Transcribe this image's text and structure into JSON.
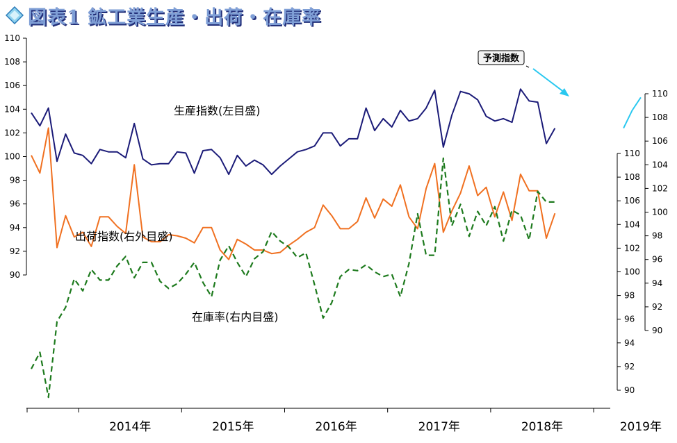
{
  "title": "図表1 鉱工業生産・出荷・在庫率",
  "colors": {
    "production": "#1b1b78",
    "shipments": "#f07020",
    "inventory": "#1d7a1d",
    "forecast": "#29c8f0"
  },
  "chart_data": {
    "type": "line",
    "x_labels": [
      "2014年",
      "2015年",
      "2016年",
      "2017年",
      "2018年",
      "2019年"
    ],
    "x_range": [
      "2013-07",
      "2019-05"
    ],
    "axes": {
      "left": {
        "ylim": [
          90,
          110
        ],
        "ticks": [
          "110",
          "108",
          "106",
          "104",
          "102",
          "100",
          "98",
          "96",
          "94",
          "92",
          "90"
        ]
      },
      "right_outer": {
        "ylim": [
          90,
          110
        ],
        "ticks": [
          "110",
          "108",
          "106",
          "104",
          "102",
          "100",
          "98",
          "96",
          "94",
          "92",
          "90"
        ]
      },
      "right_inner": {
        "ylim": [
          90,
          110
        ],
        "ticks": [
          "110",
          "108",
          "106",
          "104",
          "102",
          "100",
          "98",
          "96",
          "94",
          "92",
          "90"
        ]
      }
    },
    "series": [
      {
        "name": "生産指数(左目盛)",
        "key": "production",
        "axis": "left",
        "start": "2013-07",
        "values": [
          103.7,
          102.6,
          104.1,
          99.6,
          101.9,
          100.3,
          100.1,
          99.4,
          100.6,
          100.4,
          100.4,
          99.9,
          102.8,
          99.8,
          99.3,
          99.4,
          99.4,
          100.4,
          100.3,
          98.6,
          100.5,
          100.6,
          99.9,
          98.5,
          100.1,
          99.2,
          99.7,
          99.3,
          98.5,
          99.2,
          99.8,
          100.4,
          100.6,
          100.9,
          102.0,
          102.0,
          100.9,
          101.5,
          101.5,
          104.1,
          102.2,
          103.2,
          102.5,
          103.9,
          103.0,
          103.2,
          104.1,
          105.6,
          100.8,
          103.5,
          105.5,
          105.3,
          104.8,
          103.4,
          103.0,
          103.2,
          102.9,
          105.7,
          104.7,
          104.6,
          101.1,
          102.4
        ]
      },
      {
        "name": "予測指数",
        "key": "forecast",
        "axis": "left",
        "start": "2019-04",
        "values": [
          102.4,
          103.9,
          105.0
        ]
      },
      {
        "name": "出荷指数(右外目盛)",
        "key": "shipments",
        "axis": "right_outer",
        "start": "2013-07",
        "values": [
          104.8,
          103.3,
          107.1,
          97.0,
          99.7,
          97.9,
          98.3,
          97.1,
          99.6,
          99.6,
          98.8,
          98.2,
          104.0,
          97.9,
          97.5,
          97.5,
          98.1,
          98.0,
          97.8,
          97.4,
          98.7,
          98.7,
          96.8,
          96.0,
          97.7,
          97.3,
          96.8,
          96.8,
          96.5,
          96.6,
          97.2,
          97.7,
          98.3,
          98.7,
          100.6,
          99.7,
          98.6,
          98.6,
          99.2,
          101.2,
          99.5,
          101.1,
          100.5,
          102.3,
          99.6,
          98.6,
          102.0,
          104.1,
          98.3,
          100.1,
          101.6,
          103.9,
          101.4,
          102.1,
          99.6,
          101.7,
          99.3,
          103.2,
          101.8,
          101.8,
          97.8,
          99.9
        ]
      },
      {
        "name": "在庫率(右内目盛)",
        "key": "inventory",
        "axis": "right_inner",
        "start": "2013-07",
        "values": [
          91.8,
          93.2,
          89.4,
          95.8,
          97.0,
          99.4,
          98.4,
          100.2,
          99.3,
          99.3,
          100.5,
          101.3,
          99.5,
          100.8,
          100.8,
          99.2,
          98.6,
          99.0,
          99.8,
          100.8,
          99.1,
          97.9,
          101.0,
          102.2,
          100.8,
          99.6,
          101.1,
          101.7,
          103.4,
          102.6,
          102.1,
          101.2,
          101.6,
          98.9,
          96.1,
          97.4,
          99.6,
          100.2,
          100.1,
          100.6,
          100.0,
          99.6,
          99.8,
          97.9,
          100.7,
          104.9,
          101.4,
          101.4,
          109.6,
          103.9,
          105.7,
          103.0,
          105.1,
          103.9,
          105.5,
          102.6,
          105.2,
          104.8,
          102.7,
          106.8,
          105.9,
          105.9
        ]
      }
    ],
    "annotations": [
      "生産指数(左目盛)",
      "出荷指数(右外目盛)",
      "在庫率(右内目盛)",
      "予測指数"
    ]
  }
}
